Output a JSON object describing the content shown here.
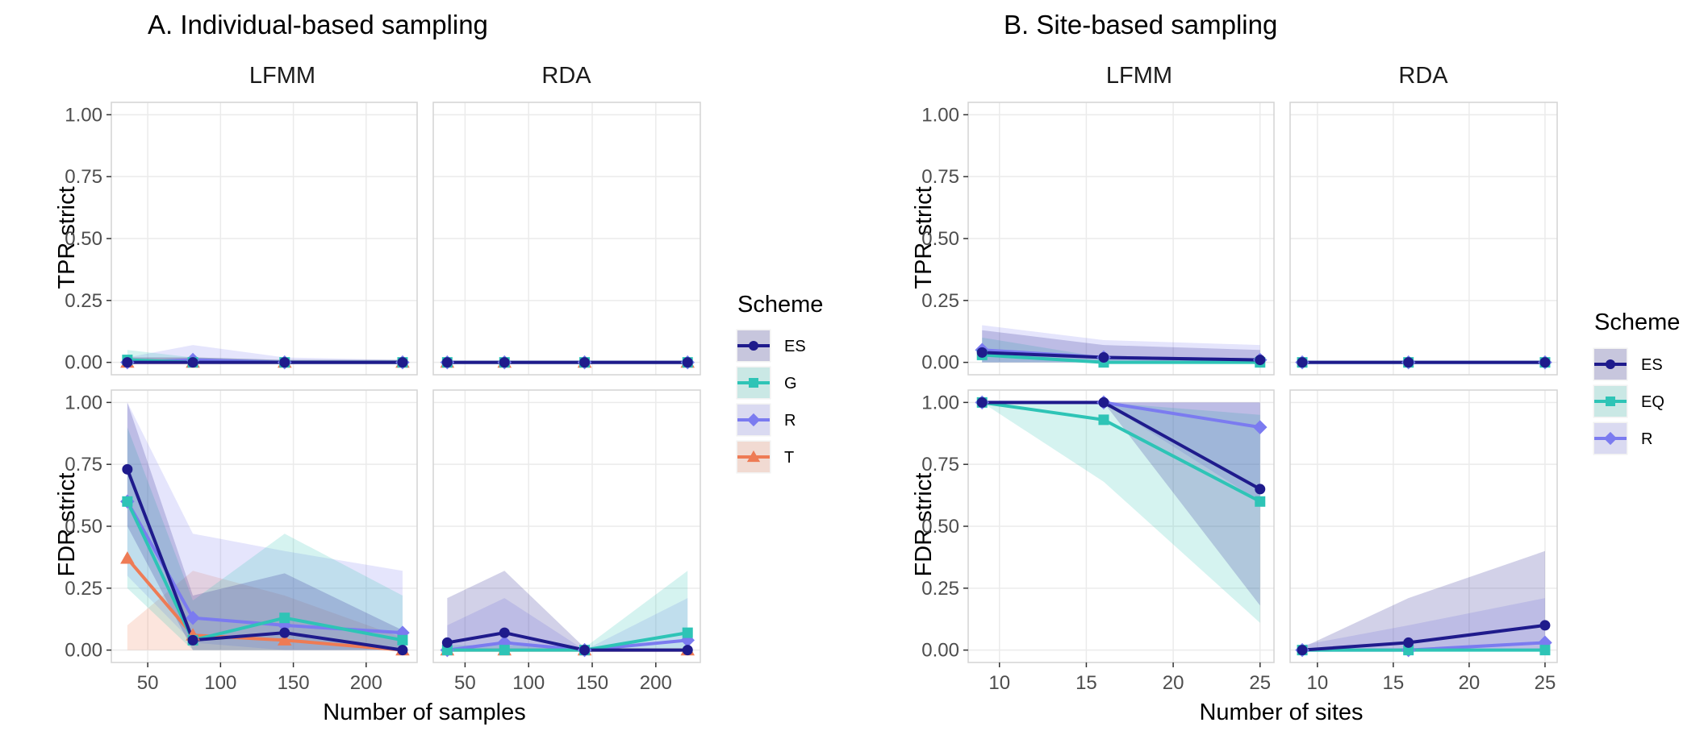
{
  "colors": {
    "ES": "#1f1b8c",
    "G": "#2ec4b6",
    "EQ": "#2ec4b6",
    "R": "#7b7bf0",
    "T": "#ee7b55"
  },
  "chart_data": [
    {
      "type": "line",
      "title": "A. Individual-based sampling",
      "xlabel": "Number of samples",
      "xticks": [
        50,
        100,
        150,
        200
      ],
      "xlim": [
        25,
        235
      ],
      "ylim": [
        -0.05,
        1.05
      ],
      "yticks": [
        0.0,
        0.25,
        0.5,
        0.75,
        1.0
      ],
      "ytick_labels": [
        "0.00",
        "0.25",
        "0.50",
        "0.75",
        "1.00"
      ],
      "columns": [
        "LFMM",
        "RDA"
      ],
      "rows": [
        "TPR strict",
        "FDR strict"
      ],
      "legend": {
        "title": "Scheme",
        "position": "right",
        "entries": [
          {
            "name": "ES",
            "marker": "circle"
          },
          {
            "name": "G",
            "marker": "square"
          },
          {
            "name": "R",
            "marker": "diamond"
          },
          {
            "name": "T",
            "marker": "triangle"
          }
        ]
      },
      "panels": [
        {
          "column": "LFMM",
          "row": "TPR strict",
          "series": [
            {
              "name": "T",
              "x": [
                36,
                81,
                144,
                225
              ],
              "y": [
                0,
                0,
                0,
                0
              ],
              "lower": [
                0,
                0,
                0,
                0
              ],
              "upper": [
                0.02,
                0.02,
                0.01,
                0.01
              ]
            },
            {
              "name": "R",
              "x": [
                36,
                81,
                144,
                225
              ],
              "y": [
                0,
                0.01,
                0,
                0
              ],
              "lower": [
                0,
                0,
                0,
                0
              ],
              "upper": [
                0.02,
                0.07,
                0.02,
                0.01
              ]
            },
            {
              "name": "G",
              "x": [
                36,
                81,
                144,
                225
              ],
              "y": [
                0.01,
                0,
                0,
                0
              ],
              "lower": [
                0,
                0,
                0,
                0
              ],
              "upper": [
                0.05,
                0.02,
                0.01,
                0.01
              ]
            },
            {
              "name": "ES",
              "x": [
                36,
                81,
                144,
                225
              ],
              "y": [
                0,
                0,
                0,
                0
              ],
              "lower": [
                0,
                0,
                0,
                0
              ],
              "upper": [
                0.02,
                0.02,
                0.01,
                0.01
              ]
            }
          ]
        },
        {
          "column": "RDA",
          "row": "TPR strict",
          "series": [
            {
              "name": "T",
              "x": [
                36,
                81,
                144,
                225
              ],
              "y": [
                0,
                0,
                0,
                0
              ],
              "lower": [
                0,
                0,
                0,
                0
              ],
              "upper": [
                0,
                0,
                0,
                0
              ]
            },
            {
              "name": "R",
              "x": [
                36,
                81,
                144,
                225
              ],
              "y": [
                0,
                0,
                0,
                0
              ],
              "lower": [
                0,
                0,
                0,
                0
              ],
              "upper": [
                0,
                0,
                0,
                0
              ]
            },
            {
              "name": "G",
              "x": [
                36,
                81,
                144,
                225
              ],
              "y": [
                0,
                0,
                0,
                0
              ],
              "lower": [
                0,
                0,
                0,
                0
              ],
              "upper": [
                0,
                0,
                0,
                0
              ]
            },
            {
              "name": "ES",
              "x": [
                36,
                81,
                144,
                225
              ],
              "y": [
                0,
                0,
                0,
                0
              ],
              "lower": [
                0,
                0,
                0,
                0
              ],
              "upper": [
                0,
                0,
                0,
                0
              ]
            }
          ]
        },
        {
          "column": "LFMM",
          "row": "FDR strict",
          "series": [
            {
              "name": "T",
              "x": [
                36,
                81,
                144,
                225
              ],
              "y": [
                0.37,
                0.06,
                0.04,
                0.0
              ],
              "lower": [
                0,
                0,
                0,
                0
              ],
              "upper": [
                0.1,
                0.32,
                0.22,
                0.05
              ]
            },
            {
              "name": "R",
              "x": [
                36,
                81,
                144,
                225
              ],
              "y": [
                0.6,
                0.13,
                0.1,
                0.07
              ],
              "lower": [
                0.3,
                0.03,
                0.0,
                0.0
              ],
              "upper": [
                1.0,
                0.47,
                0.4,
                0.32
              ]
            },
            {
              "name": "G",
              "x": [
                36,
                81,
                144,
                225
              ],
              "y": [
                0.6,
                0.04,
                0.13,
                0.04
              ],
              "lower": [
                0.25,
                0.0,
                0.0,
                0.0
              ],
              "upper": [
                0.9,
                0.2,
                0.47,
                0.22
              ]
            },
            {
              "name": "ES",
              "x": [
                36,
                81,
                144,
                225
              ],
              "y": [
                0.73,
                0.04,
                0.07,
                0.0
              ],
              "lower": [
                0.5,
                0.0,
                0.0,
                0.0
              ],
              "upper": [
                1.0,
                0.22,
                0.31,
                0.08
              ]
            }
          ]
        },
        {
          "column": "RDA",
          "row": "FDR strict",
          "series": [
            {
              "name": "T",
              "x": [
                36,
                81,
                144,
                225
              ],
              "y": [
                0,
                0,
                0,
                0
              ],
              "lower": [
                0,
                0,
                0,
                0
              ],
              "upper": [
                0,
                0,
                0,
                0
              ]
            },
            {
              "name": "R",
              "x": [
                36,
                81,
                144,
                225
              ],
              "y": [
                0,
                0.03,
                0,
                0.04
              ],
              "lower": [
                0,
                0,
                0,
                0
              ],
              "upper": [
                0.1,
                0.21,
                0.0,
                0.21
              ]
            },
            {
              "name": "G",
              "x": [
                36,
                81,
                144,
                225
              ],
              "y": [
                0,
                0,
                0,
                0.07
              ],
              "lower": [
                0,
                0,
                0,
                0
              ],
              "upper": [
                0.02,
                0.02,
                0.01,
                0.32
              ]
            },
            {
              "name": "ES",
              "x": [
                36,
                81,
                144,
                225
              ],
              "y": [
                0.03,
                0.07,
                0,
                0
              ],
              "lower": [
                0,
                0,
                0,
                0
              ],
              "upper": [
                0.21,
                0.32,
                0.01,
                0.0
              ]
            }
          ]
        }
      ]
    },
    {
      "type": "line",
      "title": "B. Site-based sampling",
      "xlabel": "Number of sites",
      "xticks": [
        10,
        15,
        20,
        25
      ],
      "xlim": [
        8.2,
        25.8
      ],
      "ylim": [
        -0.05,
        1.05
      ],
      "yticks": [
        0.0,
        0.25,
        0.5,
        0.75,
        1.0
      ],
      "ytick_labels": [
        "0.00",
        "0.25",
        "0.50",
        "0.75",
        "1.00"
      ],
      "columns": [
        "LFMM",
        "RDA"
      ],
      "rows": [
        "TPR strict",
        "FDR strict"
      ],
      "legend": {
        "title": "Scheme",
        "position": "right",
        "entries": [
          {
            "name": "ES",
            "marker": "circle"
          },
          {
            "name": "EQ",
            "marker": "square"
          },
          {
            "name": "R",
            "marker": "diamond"
          }
        ]
      },
      "panels": [
        {
          "column": "LFMM",
          "row": "TPR strict",
          "series": [
            {
              "name": "R",
              "x": [
                9,
                16,
                25
              ],
              "y": [
                0.05,
                0.02,
                0.01
              ],
              "lower": [
                0,
                0,
                0
              ],
              "upper": [
                0.15,
                0.09,
                0.07
              ]
            },
            {
              "name": "EQ",
              "x": [
                9,
                16,
                25
              ],
              "y": [
                0.03,
                0.0,
                0.0
              ],
              "lower": [
                0,
                0,
                0
              ],
              "upper": [
                0.1,
                0.02,
                0.01
              ]
            },
            {
              "name": "ES",
              "x": [
                9,
                16,
                25
              ],
              "y": [
                0.04,
                0.02,
                0.01
              ],
              "lower": [
                0,
                0,
                0
              ],
              "upper": [
                0.13,
                0.07,
                0.05
              ]
            }
          ]
        },
        {
          "column": "RDA",
          "row": "TPR strict",
          "series": [
            {
              "name": "R",
              "x": [
                9,
                16,
                25
              ],
              "y": [
                0,
                0,
                0
              ],
              "lower": [
                0,
                0,
                0
              ],
              "upper": [
                0,
                0,
                0
              ]
            },
            {
              "name": "EQ",
              "x": [
                9,
                16,
                25
              ],
              "y": [
                0,
                0,
                0
              ],
              "lower": [
                0,
                0,
                0
              ],
              "upper": [
                0,
                0,
                0
              ]
            },
            {
              "name": "ES",
              "x": [
                9,
                16,
                25
              ],
              "y": [
                0,
                0,
                0
              ],
              "lower": [
                0,
                0,
                0
              ],
              "upper": [
                0,
                0,
                0
              ]
            }
          ]
        },
        {
          "column": "LFMM",
          "row": "FDR strict",
          "series": [
            {
              "name": "R",
              "x": [
                9,
                16,
                25
              ],
              "y": [
                1.0,
                1.0,
                0.9
              ],
              "lower": [
                1.0,
                1.0,
                0.6
              ],
              "upper": [
                1.0,
                1.0,
                1.0
              ]
            },
            {
              "name": "EQ",
              "x": [
                9,
                16,
                25
              ],
              "y": [
                1.0,
                0.93,
                0.6
              ],
              "lower": [
                1.0,
                0.68,
                0.11
              ],
              "upper": [
                1.0,
                1.0,
                0.95
              ]
            },
            {
              "name": "ES",
              "x": [
                9,
                16,
                25
              ],
              "y": [
                1.0,
                1.0,
                0.65
              ],
              "lower": [
                1.0,
                1.0,
                0.18
              ],
              "upper": [
                1.0,
                1.0,
                1.0
              ]
            }
          ]
        },
        {
          "column": "RDA",
          "row": "FDR strict",
          "series": [
            {
              "name": "R",
              "x": [
                9,
                16,
                25
              ],
              "y": [
                0.0,
                0.0,
                0.03
              ],
              "lower": [
                0,
                0,
                0
              ],
              "upper": [
                0.02,
                0.1,
                0.21
              ]
            },
            {
              "name": "EQ",
              "x": [
                9,
                16,
                25
              ],
              "y": [
                0.0,
                0.0,
                0.0
              ],
              "lower": [
                0,
                0,
                0
              ],
              "upper": [
                0.0,
                0.0,
                0.0
              ]
            },
            {
              "name": "ES",
              "x": [
                9,
                16,
                25
              ],
              "y": [
                0.0,
                0.03,
                0.1
              ],
              "lower": [
                0,
                0,
                0
              ],
              "upper": [
                0.01,
                0.21,
                0.4
              ]
            }
          ]
        }
      ]
    }
  ]
}
